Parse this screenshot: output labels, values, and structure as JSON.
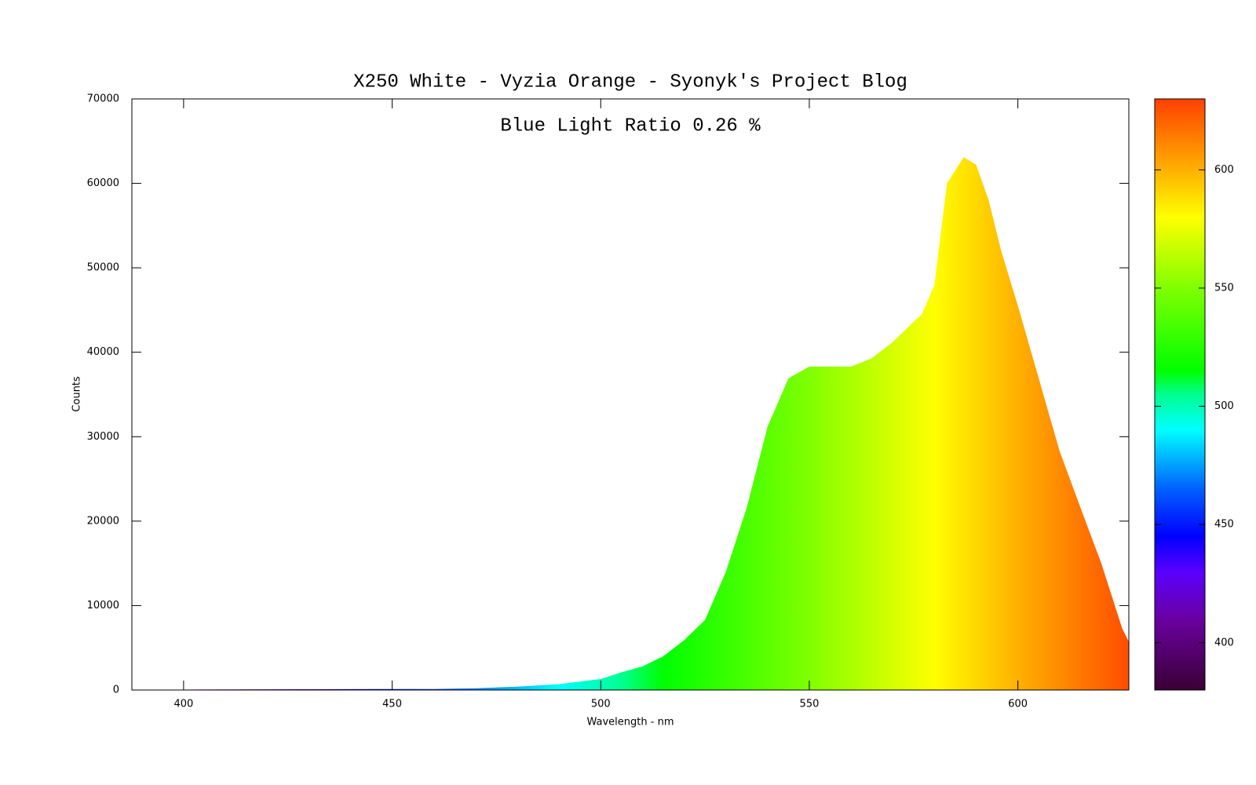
{
  "chart_data": {
    "type": "area",
    "title": "X250 White - Vyzia Orange - Syonyk's Project Blog",
    "annotation": "Blue Light Ratio 0.26 %",
    "xlabel": "Wavelength - nm",
    "ylabel": "Counts",
    "x": [
      388,
      400,
      420,
      440,
      460,
      470,
      480,
      490,
      500,
      505,
      510,
      515,
      520,
      525,
      530,
      535,
      540,
      545,
      550,
      555,
      560,
      565,
      570,
      575,
      577,
      580,
      583,
      587,
      590,
      593,
      596,
      600,
      605,
      610,
      615,
      620,
      625,
      626.6
    ],
    "values": [
      0,
      50,
      80,
      100,
      120,
      200,
      400,
      700,
      1300,
      2100,
      2800,
      4000,
      5900,
      8300,
      14000,
      21600,
      31200,
      36900,
      38300,
      38300,
      38300,
      39300,
      41200,
      43600,
      44500,
      48000,
      60000,
      63100,
      62200,
      58000,
      52000,
      45500,
      36900,
      28300,
      21600,
      15000,
      7300,
      5700
    ],
    "xlim": [
      387.6,
      626.6
    ],
    "ylim": [
      0,
      70000
    ],
    "xticks": [
      400,
      450,
      500,
      550,
      600
    ],
    "yticks": [
      0,
      10000,
      20000,
      30000,
      40000,
      50000,
      60000,
      70000
    ],
    "colorbar": {
      "lim": [
        380,
        630
      ],
      "ticks": [
        400,
        450,
        500,
        550,
        600
      ]
    }
  }
}
